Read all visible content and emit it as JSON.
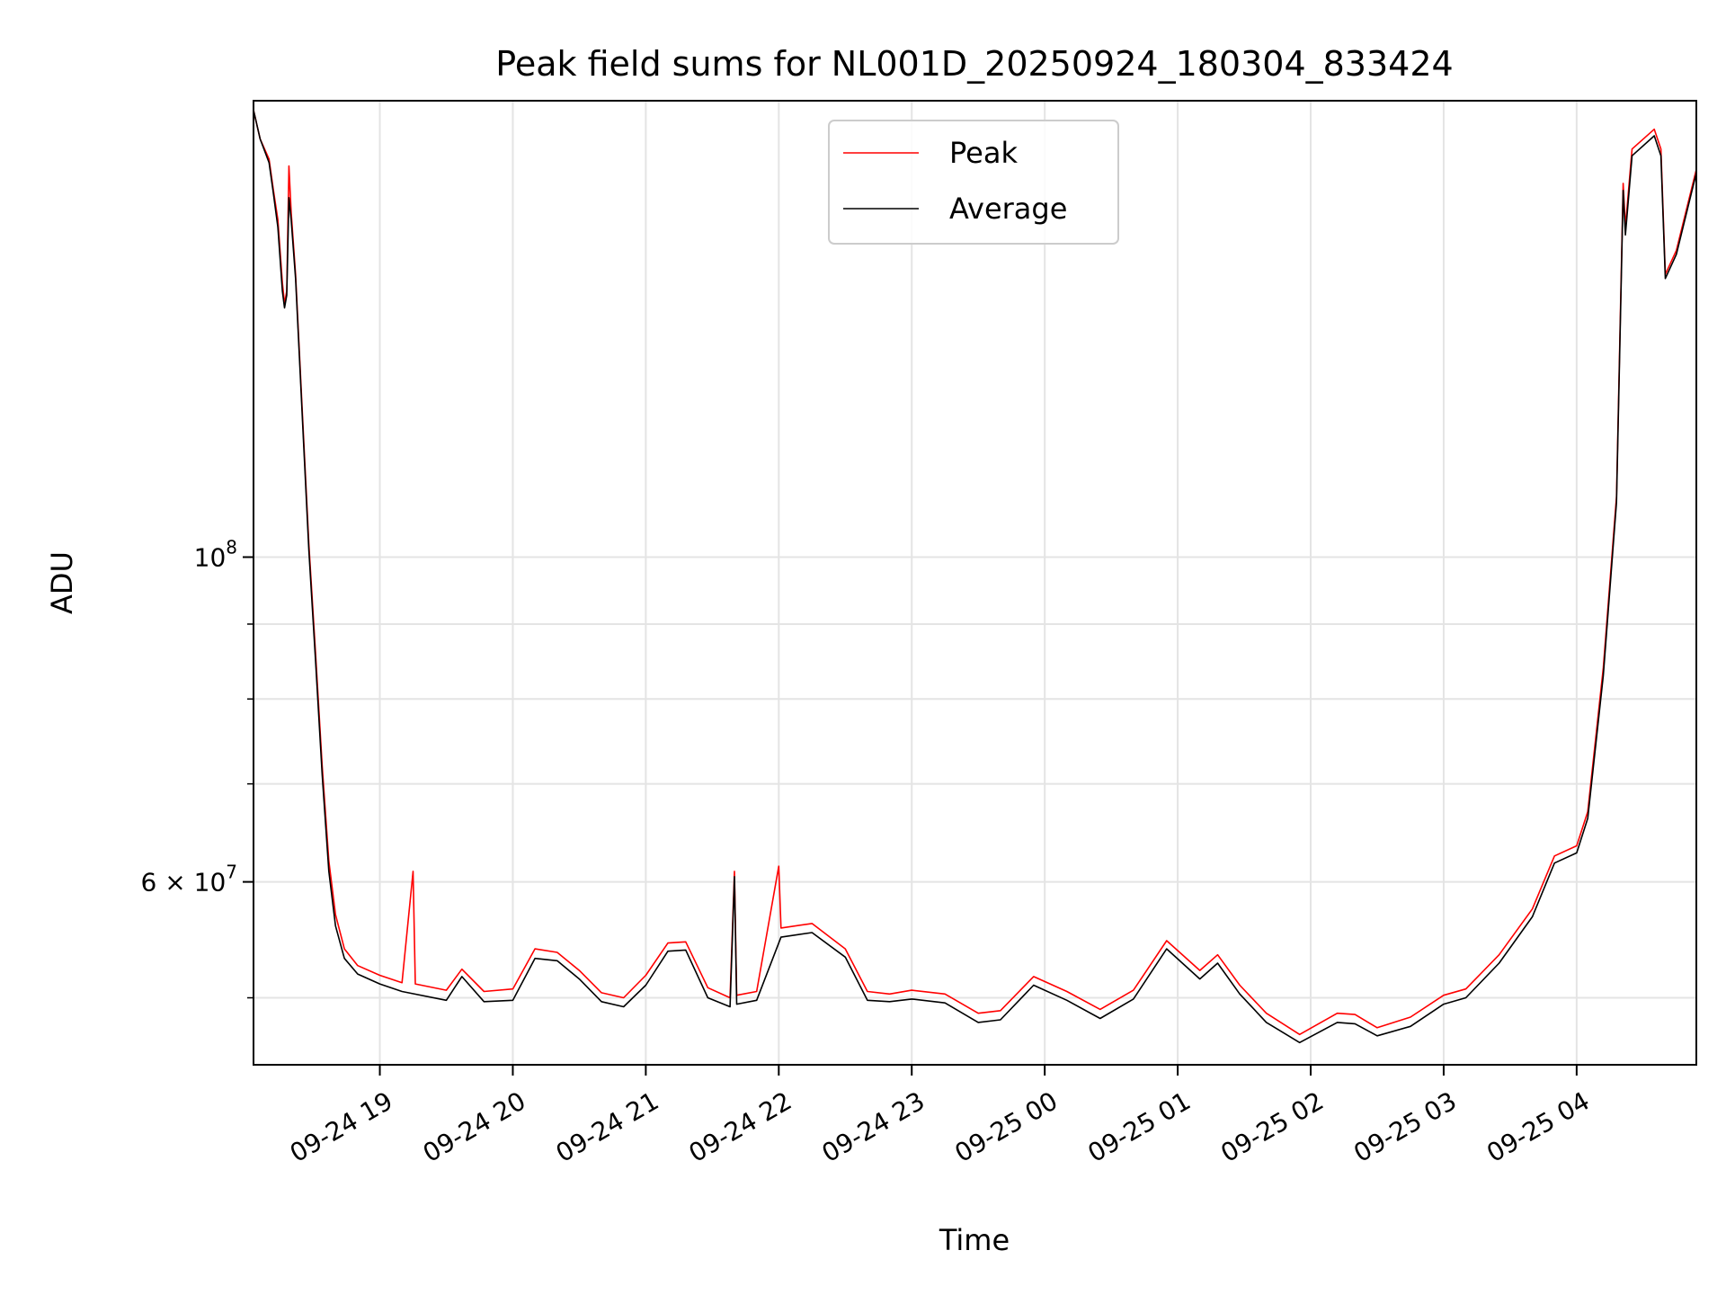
{
  "chart_data": {
    "type": "line",
    "title": "Peak field sums for NL001D_20250924_180304_833424",
    "xlabel": "Time",
    "ylabel": "ADU",
    "y_scale": "log",
    "grid": true,
    "legend_placement": "upper-center",
    "x_range": [
      "2025-09-24 18:03",
      "2025-09-25 04:54"
    ],
    "ylim": [
      45000000,
      205000000
    ],
    "x_ticks": [
      {
        "t": "2025-09-24 19:00",
        "label": "09-24 19"
      },
      {
        "t": "2025-09-24 20:00",
        "label": "09-24 20"
      },
      {
        "t": "2025-09-24 21:00",
        "label": "09-24 21"
      },
      {
        "t": "2025-09-24 22:00",
        "label": "09-24 22"
      },
      {
        "t": "2025-09-24 23:00",
        "label": "09-24 23"
      },
      {
        "t": "2025-09-25 00:00",
        "label": "09-25 00"
      },
      {
        "t": "2025-09-25 01:00",
        "label": "09-25 01"
      },
      {
        "t": "2025-09-25 02:00",
        "label": "09-25 02"
      },
      {
        "t": "2025-09-25 03:00",
        "label": "09-25 03"
      },
      {
        "t": "2025-09-25 04:00",
        "label": "09-25 04"
      }
    ],
    "y_major_ticks": [
      {
        "value": 100000000,
        "base": "10",
        "exp": "8"
      },
      {
        "value": 60000000,
        "base": "6 × 10",
        "exp": "7"
      }
    ],
    "y_minor_ticks": [
      50000000,
      70000000,
      80000000,
      90000000
    ],
    "series": [
      {
        "name": "Peak",
        "color": "#ff0000",
        "points": [
          [
            "2025-09-24 18:03",
            202000000
          ],
          [
            "2025-09-24 18:06",
            193000000
          ],
          [
            "2025-09-24 18:10",
            187000000
          ],
          [
            "2025-09-24 18:12",
            178000000
          ],
          [
            "2025-09-24 18:14",
            170000000
          ],
          [
            "2025-09-24 18:16",
            154000000
          ],
          [
            "2025-09-24 18:17",
            149000000
          ],
          [
            "2025-09-24 18:18",
            152000000
          ],
          [
            "2025-09-24 18:19",
            185000000
          ],
          [
            "2025-09-24 18:20",
            172000000
          ],
          [
            "2025-09-24 18:22",
            156000000
          ],
          [
            "2025-09-24 18:25",
            126000000
          ],
          [
            "2025-09-24 18:28",
            102000000
          ],
          [
            "2025-09-24 18:31",
            86000000
          ],
          [
            "2025-09-24 18:34",
            72000000
          ],
          [
            "2025-09-24 18:37",
            62000000
          ],
          [
            "2025-09-24 18:40",
            57000000
          ],
          [
            "2025-09-24 18:44",
            54000000
          ],
          [
            "2025-09-24 18:50",
            52600000
          ],
          [
            "2025-09-24 19:00",
            51800000
          ],
          [
            "2025-09-24 19:10",
            51200000
          ],
          [
            "2025-09-24 19:15",
            61000000
          ],
          [
            "2025-09-24 19:16",
            51100000
          ],
          [
            "2025-09-24 19:30",
            50600000
          ],
          [
            "2025-09-24 19:37",
            52300000
          ],
          [
            "2025-09-24 19:47",
            50500000
          ],
          [
            "2025-09-24 20:00",
            50700000
          ],
          [
            "2025-09-24 20:10",
            54000000
          ],
          [
            "2025-09-24 20:20",
            53700000
          ],
          [
            "2025-09-24 20:30",
            52200000
          ],
          [
            "2025-09-24 20:40",
            50400000
          ],
          [
            "2025-09-24 20:50",
            50000000
          ],
          [
            "2025-09-24 21:00",
            51800000
          ],
          [
            "2025-09-24 21:10",
            54500000
          ],
          [
            "2025-09-24 21:18",
            54600000
          ],
          [
            "2025-09-24 21:28",
            50800000
          ],
          [
            "2025-09-24 21:38",
            50000000
          ],
          [
            "2025-09-24 21:40",
            61000000
          ],
          [
            "2025-09-24 21:41",
            50200000
          ],
          [
            "2025-09-24 21:50",
            50500000
          ],
          [
            "2025-09-24 22:00",
            61500000
          ],
          [
            "2025-09-24 22:01",
            55800000
          ],
          [
            "2025-09-24 22:15",
            56200000
          ],
          [
            "2025-09-24 22:30",
            54000000
          ],
          [
            "2025-09-24 22:40",
            50500000
          ],
          [
            "2025-09-24 22:50",
            50300000
          ],
          [
            "2025-09-24 23:00",
            50600000
          ],
          [
            "2025-09-24 23:15",
            50300000
          ],
          [
            "2025-09-24 23:30",
            48800000
          ],
          [
            "2025-09-24 23:40",
            49000000
          ],
          [
            "2025-09-24 23:55",
            51700000
          ],
          [
            "2025-09-25 00:10",
            50500000
          ],
          [
            "2025-09-25 00:25",
            49100000
          ],
          [
            "2025-09-25 00:40",
            50600000
          ],
          [
            "2025-09-25 00:55",
            54700000
          ],
          [
            "2025-09-25 01:10",
            52200000
          ],
          [
            "2025-09-25 01:18",
            53500000
          ],
          [
            "2025-09-25 01:28",
            51000000
          ],
          [
            "2025-09-25 01:40",
            48800000
          ],
          [
            "2025-09-25 01:55",
            47200000
          ],
          [
            "2025-09-25 02:12",
            48800000
          ],
          [
            "2025-09-25 02:20",
            48700000
          ],
          [
            "2025-09-25 02:30",
            47700000
          ],
          [
            "2025-09-25 02:45",
            48500000
          ],
          [
            "2025-09-25 03:00",
            50200000
          ],
          [
            "2025-09-25 03:10",
            50700000
          ],
          [
            "2025-09-25 03:25",
            53500000
          ],
          [
            "2025-09-25 03:40",
            57500000
          ],
          [
            "2025-09-25 03:50",
            62500000
          ],
          [
            "2025-09-25 04:00",
            63500000
          ],
          [
            "2025-09-25 04:05",
            67000000
          ],
          [
            "2025-09-25 04:12",
            84000000
          ],
          [
            "2025-09-25 04:18",
            110000000
          ],
          [
            "2025-09-25 04:21",
            180000000
          ],
          [
            "2025-09-25 04:22",
            168000000
          ],
          [
            "2025-09-25 04:25",
            190000000
          ],
          [
            "2025-09-25 04:35",
            196000000
          ],
          [
            "2025-09-25 04:38",
            190000000
          ],
          [
            "2025-09-25 04:40",
            156000000
          ],
          [
            "2025-09-25 04:45",
            162000000
          ],
          [
            "2025-09-25 04:54",
            184000000
          ]
        ]
      },
      {
        "name": "Average",
        "color": "#000000",
        "points": [
          [
            "2025-09-24 18:03",
            202000000
          ],
          [
            "2025-09-24 18:06",
            193000000
          ],
          [
            "2025-09-24 18:10",
            186000000
          ],
          [
            "2025-09-24 18:12",
            177000000
          ],
          [
            "2025-09-24 18:14",
            168000000
          ],
          [
            "2025-09-24 18:16",
            152000000
          ],
          [
            "2025-09-24 18:17",
            148000000
          ],
          [
            "2025-09-24 18:18",
            151000000
          ],
          [
            "2025-09-24 18:19",
            176000000
          ],
          [
            "2025-09-24 18:20",
            170000000
          ],
          [
            "2025-09-24 18:22",
            155000000
          ],
          [
            "2025-09-24 18:25",
            125000000
          ],
          [
            "2025-09-24 18:28",
            101000000
          ],
          [
            "2025-09-24 18:31",
            85000000
          ],
          [
            "2025-09-24 18:34",
            71000000
          ],
          [
            "2025-09-24 18:37",
            61000000
          ],
          [
            "2025-09-24 18:40",
            56000000
          ],
          [
            "2025-09-24 18:44",
            53200000
          ],
          [
            "2025-09-24 18:50",
            51900000
          ],
          [
            "2025-09-24 19:00",
            51100000
          ],
          [
            "2025-09-24 19:10",
            50500000
          ],
          [
            "2025-09-24 19:30",
            49800000
          ],
          [
            "2025-09-24 19:37",
            51700000
          ],
          [
            "2025-09-24 19:47",
            49700000
          ],
          [
            "2025-09-24 20:00",
            49800000
          ],
          [
            "2025-09-24 20:10",
            53200000
          ],
          [
            "2025-09-24 20:20",
            53000000
          ],
          [
            "2025-09-24 20:30",
            51500000
          ],
          [
            "2025-09-24 20:40",
            49700000
          ],
          [
            "2025-09-24 20:50",
            49300000
          ],
          [
            "2025-09-24 21:00",
            51000000
          ],
          [
            "2025-09-24 21:10",
            53800000
          ],
          [
            "2025-09-24 21:18",
            53900000
          ],
          [
            "2025-09-24 21:28",
            50000000
          ],
          [
            "2025-09-24 21:38",
            49300000
          ],
          [
            "2025-09-24 21:40",
            60500000
          ],
          [
            "2025-09-24 21:41",
            49500000
          ],
          [
            "2025-09-24 21:50",
            49800000
          ],
          [
            "2025-09-24 22:01",
            55000000
          ],
          [
            "2025-09-24 22:15",
            55400000
          ],
          [
            "2025-09-24 22:30",
            53300000
          ],
          [
            "2025-09-24 22:40",
            49800000
          ],
          [
            "2025-09-24 22:50",
            49700000
          ],
          [
            "2025-09-24 23:00",
            49900000
          ],
          [
            "2025-09-24 23:15",
            49600000
          ],
          [
            "2025-09-24 23:30",
            48100000
          ],
          [
            "2025-09-24 23:40",
            48300000
          ],
          [
            "2025-09-24 23:55",
            51000000
          ],
          [
            "2025-09-25 00:10",
            49800000
          ],
          [
            "2025-09-25 00:25",
            48400000
          ],
          [
            "2025-09-25 00:40",
            49900000
          ],
          [
            "2025-09-25 00:55",
            54000000
          ],
          [
            "2025-09-25 01:10",
            51500000
          ],
          [
            "2025-09-25 01:18",
            52800000
          ],
          [
            "2025-09-25 01:28",
            50300000
          ],
          [
            "2025-09-25 01:40",
            48100000
          ],
          [
            "2025-09-25 01:55",
            46600000
          ],
          [
            "2025-09-25 02:12",
            48100000
          ],
          [
            "2025-09-25 02:20",
            48000000
          ],
          [
            "2025-09-25 02:30",
            47100000
          ],
          [
            "2025-09-25 02:45",
            47800000
          ],
          [
            "2025-09-25 03:00",
            49500000
          ],
          [
            "2025-09-25 03:10",
            50000000
          ],
          [
            "2025-09-25 03:25",
            52800000
          ],
          [
            "2025-09-25 03:40",
            56800000
          ],
          [
            "2025-09-25 03:50",
            61800000
          ],
          [
            "2025-09-25 04:00",
            62800000
          ],
          [
            "2025-09-25 04:05",
            66300000
          ],
          [
            "2025-09-25 04:12",
            83000000
          ],
          [
            "2025-09-25 04:18",
            109000000
          ],
          [
            "2025-09-25 04:21",
            178000000
          ],
          [
            "2025-09-25 04:22",
            166000000
          ],
          [
            "2025-09-25 04:25",
            188000000
          ],
          [
            "2025-09-25 04:35",
            194000000
          ],
          [
            "2025-09-25 04:38",
            188000000
          ],
          [
            "2025-09-25 04:40",
            155000000
          ],
          [
            "2025-09-25 04:45",
            161000000
          ],
          [
            "2025-09-25 04:54",
            183000000
          ]
        ]
      }
    ]
  }
}
